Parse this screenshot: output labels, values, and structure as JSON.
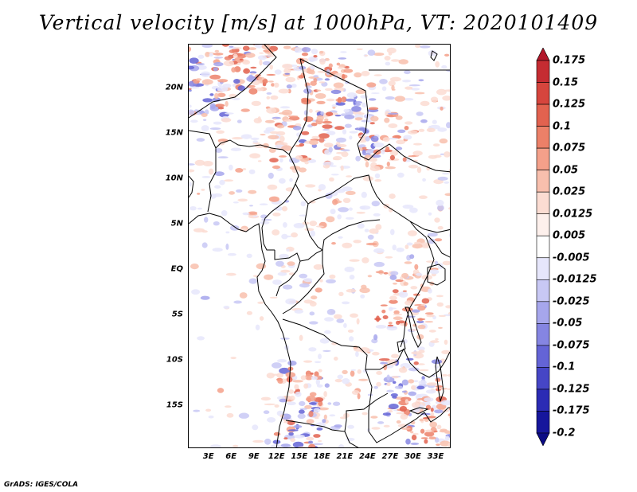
{
  "title": "Vertical velocity [m/s] at 1000hPa, VT: 2020101409",
  "credit": "GrADS: IGES/COLA",
  "map": {
    "lat_labels": [
      "20N",
      "15N",
      "10N",
      "5N",
      "EQ",
      "5S",
      "10S",
      "15S"
    ],
    "lat_values": [
      20,
      15,
      10,
      5,
      0,
      -5,
      -10,
      -15
    ],
    "lon_labels": [
      "3E",
      "6E",
      "9E",
      "12E",
      "15E",
      "18E",
      "21E",
      "24E",
      "27E",
      "30E",
      "33E"
    ],
    "lon_values": [
      3,
      6,
      9,
      12,
      15,
      18,
      21,
      24,
      27,
      30,
      33
    ],
    "lat_range": [
      -19.7,
      24.8
    ],
    "lon_range": [
      0.3,
      35.0
    ],
    "field": "vertical velocity",
    "level": "1000hPa",
    "units": "m/s",
    "valid_time": "2020101409"
  },
  "colorbar": {
    "labels": [
      "0.175",
      "0.15",
      "0.125",
      "0.1",
      "0.075",
      "0.05",
      "0.025",
      "0.0125",
      "0.005",
      "-0.005",
      "-0.0125",
      "-0.025",
      "-0.05",
      "-0.075",
      "-0.1",
      "-0.125",
      "-0.175",
      "-0.2"
    ],
    "colors": [
      "#b2182b",
      "#c52c32",
      "#d6453d",
      "#e2624f",
      "#ec8068",
      "#f4a08a",
      "#f8bfad",
      "#fbdcd2",
      "#fdf0ec",
      "#ffffff",
      "#e6e6fb",
      "#c8c8f4",
      "#a6a6ec",
      "#8585e2",
      "#6464d6",
      "#4646c6",
      "#2b2bb4",
      "#16169c",
      "#0b0b84"
    ]
  }
}
